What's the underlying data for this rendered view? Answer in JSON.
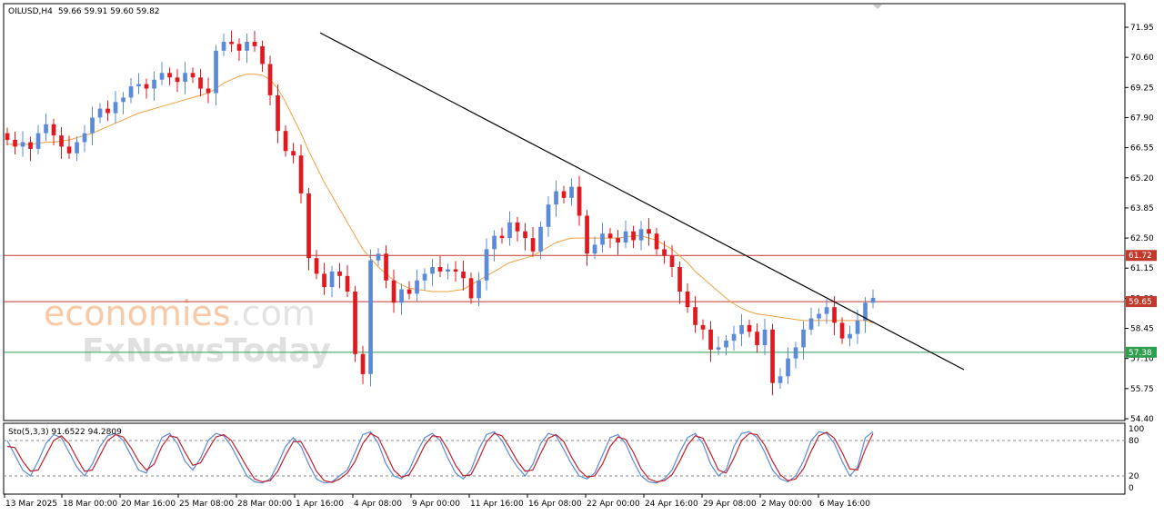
{
  "chart_data": [
    {
      "type": "candlestick",
      "title": "OILUSD,H4",
      "ohlc_header": "59.66 59.91 59.60 59.82",
      "ylim": [
        54.0,
        73.0
      ],
      "y_ticks": [
        "71.95",
        "70.60",
        "69.25",
        "67.90",
        "66.55",
        "65.20",
        "63.85",
        "62.50",
        "61.15",
        "59.80",
        "58.45",
        "57.10",
        "55.75",
        "54.40"
      ],
      "y_tick_values": [
        71.95,
        70.6,
        69.25,
        67.9,
        66.55,
        65.2,
        63.85,
        62.5,
        61.15,
        59.8,
        58.45,
        57.1,
        55.75,
        54.4
      ],
      "x_ticks": [
        "13 Mar 2025",
        "18 Mar 00:00",
        "20 Mar 16:00",
        "25 Mar 08:00",
        "28 Mar 00:00",
        "1 Apr 16:00",
        "4 Apr 08:00",
        "9 Apr 00:00",
        "11 Apr 16:00",
        "16 Apr 08:00",
        "22 Apr 00:00",
        "24 Apr 16:00",
        "29 Apr 08:00",
        "2 May 00:00",
        "6 May 16:00"
      ],
      "close_series": [
        66.9,
        66.6,
        66.8,
        66.5,
        67.2,
        67.6,
        67.1,
        66.6,
        66.3,
        66.8,
        67.2,
        67.9,
        68.3,
        68.1,
        68.6,
        68.8,
        69.3,
        69.4,
        69.2,
        69.6,
        69.9,
        69.7,
        69.5,
        69.9,
        69.7,
        69.2,
        69.0,
        70.9,
        71.3,
        71.2,
        70.9,
        71.3,
        71.1,
        70.3,
        68.9,
        67.3,
        66.4,
        66.2,
        64.5,
        61.6,
        60.9,
        60.3,
        61.0,
        60.8,
        60.1,
        57.3,
        56.4,
        61.5,
        61.8,
        60.6,
        59.6,
        60.2,
        60.0,
        60.6,
        60.9,
        61.2,
        61.0,
        61.1,
        61.0,
        60.7,
        59.8,
        60.6,
        62.0,
        62.6,
        62.5,
        63.2,
        62.8,
        62.5,
        61.9,
        63.0,
        64.0,
        64.6,
        64.3,
        64.8,
        63.5,
        61.8,
        62.2,
        62.7,
        62.5,
        62.3,
        62.8,
        62.4,
        62.9,
        62.7,
        62.0,
        61.7,
        61.2,
        60.1,
        59.4,
        58.6,
        58.4,
        57.5,
        57.6,
        57.9,
        58.2,
        58.6,
        58.3,
        57.7,
        58.4,
        56.0,
        56.3,
        57.1,
        57.6,
        58.4,
        58.9,
        59.1,
        59.4,
        58.7,
        58.0,
        58.2,
        58.8,
        59.6,
        59.82
      ],
      "ma_series": [
        {
          "values": [
            66.7,
            66.7,
            66.7,
            66.7,
            66.75,
            66.8,
            66.8,
            66.85,
            66.9,
            67.0,
            67.1,
            67.2,
            67.35,
            67.5,
            67.65,
            67.8,
            67.95,
            68.1,
            68.2,
            68.3,
            68.4,
            68.5,
            68.6,
            68.7,
            68.8,
            68.9,
            69.0,
            69.2,
            69.45,
            69.6,
            69.75,
            69.85,
            69.85,
            69.8,
            69.6,
            69.2,
            68.6,
            67.9,
            67.2,
            66.4,
            65.7,
            65.0,
            64.4,
            63.8,
            63.2,
            62.6,
            62.0,
            61.6,
            61.2,
            60.9,
            60.6,
            60.4,
            60.25,
            60.2,
            60.15,
            60.1,
            60.1,
            60.1,
            60.15,
            60.2,
            60.4,
            60.6,
            60.8,
            61.0,
            61.2,
            61.4,
            61.5,
            61.6,
            61.7,
            61.9,
            62.1,
            62.3,
            62.4,
            62.5,
            62.5,
            62.5,
            62.5,
            62.5,
            62.5,
            62.5,
            62.55,
            62.6,
            62.6,
            62.5,
            62.4,
            62.2,
            62.0,
            61.7,
            61.4,
            61.0,
            60.7,
            60.4,
            60.1,
            59.8,
            59.55,
            59.35,
            59.2,
            59.1,
            59.05,
            59.0,
            58.95,
            58.9,
            58.85,
            58.8,
            58.8,
            58.8,
            58.8,
            58.8,
            58.8,
            58.8,
            58.8,
            58.8,
            58.7
          ]
        }
      ],
      "trendline": [
        {
          "from": 71.7,
          "to": 56.6
        }
      ],
      "h_levels": [
        {
          "value": 61.72,
          "label": "61.72",
          "color": "#c0392b"
        },
        {
          "value": 59.65,
          "label": "59.65",
          "color": "#c0392b"
        },
        {
          "value": 57.38,
          "label": "57.38",
          "color": "#2e9e4f"
        }
      ],
      "bull_color": "#5b8ad8",
      "bear_color": "#e1191f",
      "ma_color": "#f0a040",
      "trend_color": "#000000"
    },
    {
      "type": "line",
      "title": "Sto(5,3,3) 91.6522 94.2809",
      "ylim": [
        0,
        100
      ],
      "y_ticks": [
        "100",
        "80",
        "20",
        "0"
      ],
      "y_tick_values": [
        100,
        80,
        20,
        0
      ],
      "series": [
        {
          "color": "#5b8ad8",
          "values": [
            80,
            55,
            30,
            20,
            45,
            75,
            90,
            85,
            60,
            35,
            20,
            40,
            70,
            88,
            92,
            80,
            55,
            30,
            25,
            55,
            85,
            92,
            75,
            45,
            30,
            50,
            80,
            92,
            88,
            70,
            45,
            20,
            10,
            8,
            15,
            40,
            70,
            85,
            70,
            40,
            15,
            8,
            10,
            20,
            30,
            60,
            90,
            95,
            75,
            40,
            20,
            15,
            30,
            60,
            85,
            92,
            80,
            50,
            25,
            15,
            30,
            65,
            90,
            95,
            80,
            55,
            35,
            20,
            40,
            75,
            92,
            88,
            65,
            40,
            20,
            15,
            25,
            55,
            85,
            90,
            75,
            45,
            20,
            10,
            8,
            15,
            30,
            60,
            85,
            92,
            75,
            40,
            20,
            30,
            70,
            92,
            95,
            85,
            60,
            30,
            15,
            10,
            20,
            45,
            80,
            95,
            92,
            75,
            45,
            20,
            35,
            85,
            95
          ]
        },
        {
          "color": "#c0202a",
          "values": [
            70,
            68,
            45,
            28,
            30,
            55,
            80,
            88,
            75,
            50,
            28,
            30,
            55,
            80,
            90,
            86,
            68,
            45,
            30,
            40,
            70,
            88,
            85,
            60,
            38,
            42,
            65,
            86,
            90,
            80,
            58,
            35,
            15,
            10,
            12,
            28,
            55,
            78,
            78,
            55,
            28,
            12,
            9,
            15,
            25,
            45,
            75,
            92,
            85,
            58,
            30,
            18,
            22,
            45,
            72,
            88,
            86,
            65,
            38,
            20,
            22,
            48,
            78,
            92,
            88,
            68,
            45,
            28,
            30,
            58,
            84,
            90,
            78,
            52,
            30,
            18,
            20,
            40,
            70,
            86,
            82,
            60,
            32,
            15,
            10,
            12,
            22,
            45,
            72,
            88,
            84,
            58,
            30,
            25,
            50,
            80,
            92,
            90,
            72,
            45,
            22,
            12,
            15,
            32,
            62,
            88,
            94,
            84,
            60,
            32,
            30,
            65,
            92
          ]
        }
      ],
      "levels": [
        80,
        20
      ]
    }
  ],
  "watermark": {
    "line1_a": "economies",
    "line1_b": ".com",
    "line2": "FxNewsToday"
  }
}
